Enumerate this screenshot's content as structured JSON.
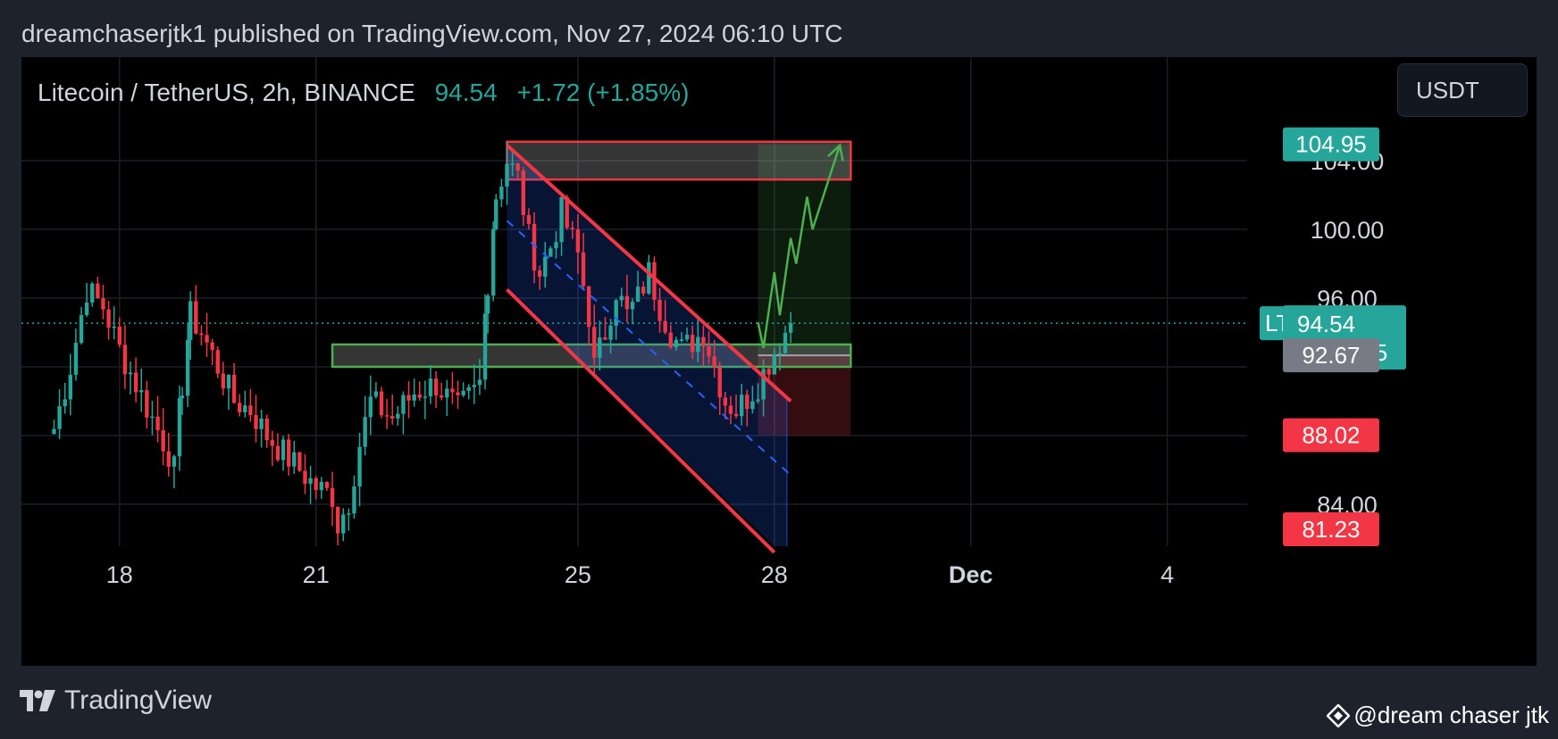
{
  "header": {
    "publish_line": "dreamchaserjtk1 published on TradingView.com, Nov 27, 2024 06:10 UTC"
  },
  "legend": {
    "symbol": "Litecoin / TetherUS, 2h, BINANCE",
    "price": "94.54",
    "change": "+1.72 (+1.85%)"
  },
  "currency_button": {
    "label": "USDT"
  },
  "footer": {
    "logo_text": "TradingView",
    "watermark": "@dream chaser jtk"
  },
  "colors": {
    "up": "#26a69a",
    "down": "#f23645",
    "background": "#000000",
    "page": "#1e222d",
    "channel_line": "#f23645",
    "zone_green": "#4caf50",
    "projection": "#4caf50",
    "mid_line": "#2962ff"
  },
  "chart_data": {
    "type": "candlestick",
    "timeframe": "2h",
    "x_ticks": [
      "18",
      "21",
      "25",
      "28",
      "Dec",
      "4"
    ],
    "y_ticks": [
      "84.00",
      "96.00",
      "100.00",
      "104.00"
    ],
    "ylim": [
      81,
      108.5
    ],
    "grid": true,
    "price_labels": [
      {
        "value": "104.95",
        "kind": "target"
      },
      {
        "value": "94.54",
        "kind": "last",
        "countdown": "01:49:25",
        "symbol": "LTCUSDT"
      },
      {
        "value": "92.67",
        "kind": "entry"
      },
      {
        "value": "88.02",
        "kind": "stop"
      },
      {
        "value": "81.23",
        "kind": "low"
      }
    ],
    "close_path": [
      [
        "Nov 17 00:00",
        88.4
      ],
      [
        "Nov 17 06:00",
        92.0
      ],
      [
        "Nov 17 12:00",
        96.5
      ],
      [
        "Nov 17 18:00",
        95.5
      ],
      [
        "Nov 18 00:00",
        93.0
      ],
      [
        "Nov 18 06:00",
        91.0
      ],
      [
        "Nov 18 12:00",
        89.0
      ],
      [
        "Nov 18 18:00",
        87.0
      ],
      [
        "Nov 18 20:00",
        86.0
      ],
      [
        "Nov 18 23:00",
        91.0
      ],
      [
        "Nov 19 02:00",
        95.0
      ],
      [
        "Nov 19 06:00",
        94.0
      ],
      [
        "Nov 19 12:00",
        92.0
      ],
      [
        "Nov 19 18:00",
        90.0
      ],
      [
        "Nov 20 00:00",
        89.5
      ],
      [
        "Nov 20 06:00",
        88.0
      ],
      [
        "Nov 20 12:00",
        87.0
      ],
      [
        "Nov 20 18:00",
        86.0
      ],
      [
        "Nov 21 00:00",
        85.0
      ],
      [
        "Nov 21 06:00",
        84.5
      ],
      [
        "Nov 21 08:00",
        82.8
      ],
      [
        "Nov 21 12:00",
        84.2
      ],
      [
        "Nov 21 16:00",
        87.5
      ],
      [
        "Nov 21 20:00",
        90.0
      ],
      [
        "Nov 22 04:00",
        89.0
      ],
      [
        "Nov 22 12:00",
        90.5
      ],
      [
        "Nov 22 20:00",
        91.0
      ],
      [
        "Nov 23 04:00",
        89.5
      ],
      [
        "Nov 23 10:00",
        90.5
      ],
      [
        "Nov 23 12:00",
        91.0
      ],
      [
        "Nov 23 15:00",
        97.0
      ],
      [
        "Nov 23 18:00",
        102.0
      ],
      [
        "Nov 23 22:00",
        104.0
      ],
      [
        "Nov 24 02:00",
        103.0
      ],
      [
        "Nov 24 06:00",
        99.5
      ],
      [
        "Nov 24 10:00",
        97.5
      ],
      [
        "Nov 24 14:00",
        99.0
      ],
      [
        "Nov 24 18:00",
        101.0
      ],
      [
        "Nov 25 00:00",
        98.5
      ],
      [
        "Nov 25 04:00",
        95.0
      ],
      [
        "Nov 25 06:00",
        92.0
      ],
      [
        "Nov 25 10:00",
        94.0
      ],
      [
        "Nov 25 14:00",
        96.5
      ],
      [
        "Nov 25 18:00",
        95.0
      ],
      [
        "Nov 25 22:00",
        96.0
      ],
      [
        "Nov 26 02:00",
        97.5
      ],
      [
        "Nov 26 06:00",
        95.5
      ],
      [
        "Nov 26 10:00",
        94.0
      ],
      [
        "Nov 26 14:00",
        93.0
      ],
      [
        "Nov 26 18:00",
        93.5
      ],
      [
        "Nov 26 22:00",
        94.0
      ],
      [
        "Nov 27 02:00",
        92.0
      ],
      [
        "Nov 27 06:00",
        90.0
      ],
      [
        "Nov 27 10:00",
        89.5
      ],
      [
        "Nov 27 14:00",
        90.2
      ],
      [
        "Nov 27 18:00",
        91.0
      ],
      [
        "Nov 27 22:00",
        92.3
      ],
      [
        "Nov 28 02:00",
        93.5
      ],
      [
        "Nov 28 06:00",
        94.54
      ]
    ],
    "drawings": {
      "resistance_zone": {
        "from": "Nov 23 22:00",
        "to": "Nov 29 04:00",
        "low": 102.9,
        "high": 105.1
      },
      "support_zone": {
        "from": "Nov 21 06:00",
        "to": "Nov 29 04:00",
        "low": 92.0,
        "high": 93.3
      },
      "channel_upper": [
        [
          "Nov 23 22:00",
          104.9
        ],
        [
          "Nov 28 06:00",
          90.0
        ]
      ],
      "channel_lower": [
        [
          "Nov 23 22:00",
          96.5
        ],
        [
          "Nov 28 00:00",
          81.2
        ]
      ],
      "channel_mid": [
        [
          "Nov 23 22:00",
          100.5
        ],
        [
          "Nov 28 06:00",
          85.7
        ]
      ],
      "long_position": {
        "from": "Nov 27 18:00",
        "to": "Nov 29 04:00",
        "entry": 92.67,
        "target": 104.95,
        "stop": 88.02
      },
      "projection": [
        [
          "Nov 27 18:00",
          94.6
        ],
        [
          "Nov 27 20:00",
          93.1
        ],
        [
          "Nov 28 00:00",
          97.5
        ],
        [
          "Nov 28 02:00",
          95.0
        ],
        [
          "Nov 28 06:00",
          99.5
        ],
        [
          "Nov 28 08:00",
          98.0
        ],
        [
          "Nov 28 12:00",
          101.9
        ],
        [
          "Nov 28 14:00",
          100.0
        ],
        [
          "Nov 29 00:00",
          104.9
        ]
      ]
    }
  }
}
